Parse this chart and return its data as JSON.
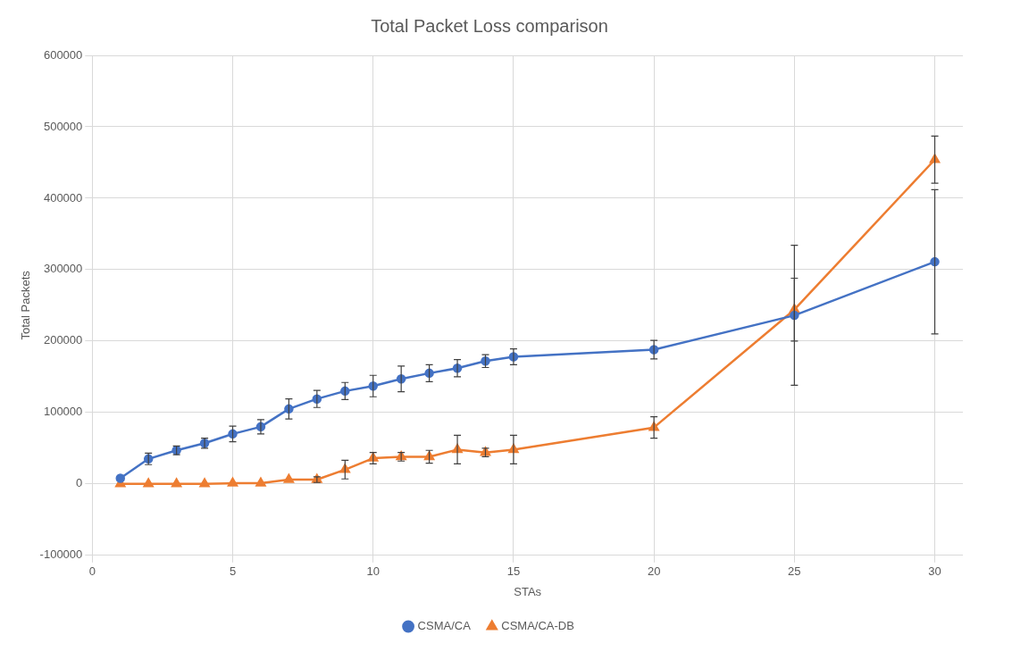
{
  "chart_data": {
    "type": "line",
    "title": "Total Packet Loss comparison",
    "xlabel": "STAs",
    "ylabel": "Total Packets",
    "x": [
      1,
      2,
      3,
      4,
      5,
      6,
      7,
      8,
      9,
      10,
      11,
      12,
      13,
      14,
      15,
      20,
      25,
      30
    ],
    "series": [
      {
        "name": "CSMA/CA",
        "color": "#4472c4",
        "marker": "circle",
        "values": [
          8000,
          35000,
          47000,
          57000,
          70000,
          80000,
          105000,
          119000,
          130000,
          137000,
          147000,
          155000,
          162000,
          172000,
          178000,
          188000,
          236000,
          311000
        ],
        "errors": [
          null,
          8000,
          6000,
          7000,
          11000,
          10000,
          14000,
          12000,
          12000,
          15000,
          18000,
          12000,
          12000,
          9000,
          11000,
          13000,
          98000,
          101000
        ]
      },
      {
        "name": "CSMA/CA-DB",
        "color": "#ed7d31",
        "marker": "triangle",
        "values": [
          0,
          0,
          0,
          0,
          1000,
          1000,
          6000,
          6000,
          20000,
          36000,
          38000,
          38000,
          48000,
          44000,
          48000,
          79000,
          244000,
          454000
        ],
        "errors": [
          null,
          null,
          null,
          null,
          null,
          null,
          null,
          4000,
          13000,
          8000,
          6000,
          9000,
          20000,
          6000,
          20000,
          15000,
          44000,
          33000
        ]
      }
    ],
    "xlim": [
      0,
      31
    ],
    "xticks": [
      0,
      5,
      10,
      15,
      20,
      25,
      30
    ],
    "ylim": [
      -100000,
      600000
    ],
    "yticks": [
      -100000,
      0,
      100000,
      200000,
      300000,
      400000,
      500000,
      600000
    ],
    "grid": true,
    "legend": "bottom",
    "line_style": "solid"
  }
}
